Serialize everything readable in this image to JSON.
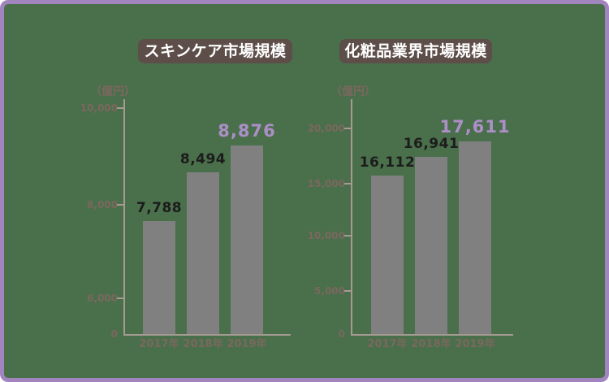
{
  "page_title": "スキンケア市場規模と化粧品業界市場規模の棒グラフ",
  "colors": {
    "background": "#4A6F4B",
    "border": "#A284BE",
    "badge": "#5D4E49",
    "badge_text": "#FFFFFF",
    "bar": "#808080",
    "axis_line": "#A69B93",
    "axis_text": "#7A685E",
    "value_text": "#1C1C1C",
    "highlight_text": "#AC8FC7"
  },
  "chart_data": [
    {
      "type": "bar",
      "title": "スキンケア市場規模",
      "unit_label": "（億円）",
      "categories": [
        "2017年",
        "2018年",
        "2019年"
      ],
      "values": [
        7788,
        8494,
        8876
      ],
      "value_labels": [
        "7,788",
        "8,494",
        "8,876"
      ],
      "y_ticks": [
        "10,000",
        "8,000",
        "6,000",
        "0"
      ],
      "ylim": [
        0,
        10000
      ],
      "ylabel": "（億円）",
      "xlabel": "",
      "grid": false,
      "legend": "none",
      "highlight_index": 2
    },
    {
      "type": "bar",
      "title": "化粧品業界市場規模",
      "unit_label": "（億円）",
      "categories": [
        "2017年",
        "2018年",
        "2019年"
      ],
      "values": [
        16112,
        16941,
        17611
      ],
      "value_labels": [
        "16,112",
        "16,941",
        "17,611"
      ],
      "y_ticks": [
        "20,000",
        "15,000",
        "10,000",
        "5,000",
        "0"
      ],
      "ylim": [
        0,
        20000
      ],
      "ylabel": "（億円）",
      "xlabel": "",
      "grid": false,
      "legend": "none",
      "highlight_index": 2
    }
  ]
}
